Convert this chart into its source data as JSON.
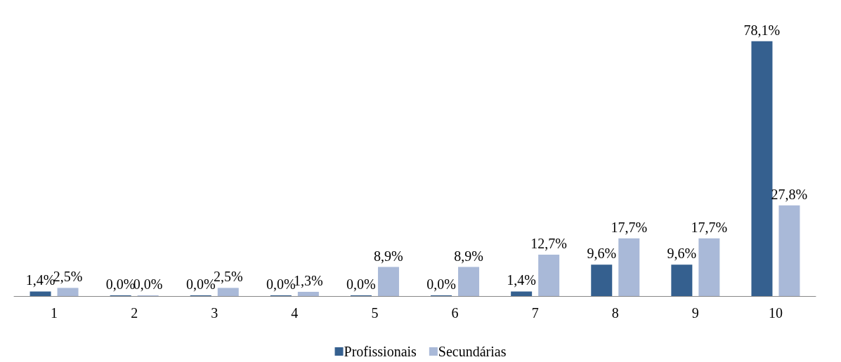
{
  "chart_data": {
    "type": "bar",
    "categories": [
      "1",
      "2",
      "3",
      "4",
      "5",
      "6",
      "7",
      "8",
      "9",
      "10"
    ],
    "series": [
      {
        "name": "Profissionais",
        "color": "#35608f",
        "values": [
          1.4,
          0.0,
          0.0,
          0.0,
          0.0,
          0.0,
          1.4,
          9.6,
          9.6,
          78.1
        ],
        "value_labels": [
          "1,4%",
          "0,0%",
          "0,0%",
          "0,0%",
          "0,0%",
          "0,0%",
          "1,4%",
          "9,6%",
          "9,6%",
          "78,1%"
        ]
      },
      {
        "name": "Secundárias",
        "color": "#a9b9d8",
        "values": [
          2.5,
          0.0,
          2.5,
          1.3,
          8.9,
          8.9,
          12.7,
          17.7,
          17.7,
          27.8
        ],
        "value_labels": [
          "2,5%",
          "0,0%",
          "2,5%",
          "1,3%",
          "8,9%",
          "8,9%",
          "12,7%",
          "17,7%",
          "17,7%",
          "27,8%"
        ]
      }
    ],
    "legend": "bottom"
  }
}
